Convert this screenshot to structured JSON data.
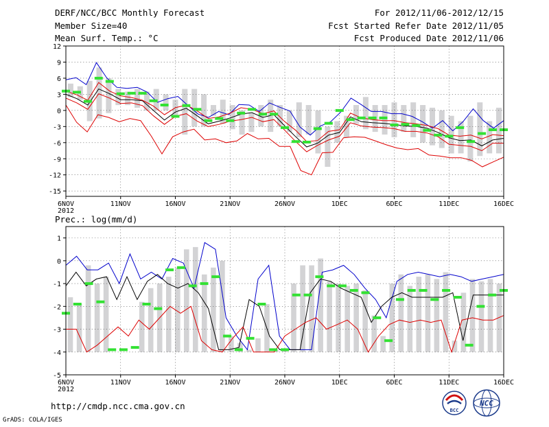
{
  "header": {
    "title": "DERF/NCC/BCC Monthly Forecast",
    "member_size": "Member Size=40",
    "variable": "Mean Surf. Temp.: °C",
    "period": "For 2012/11/06-2012/12/15",
    "refer_date": "Fcst Started Refer Date 2012/11/05",
    "produced_date": "Fcst Produced Date 2012/11/06"
  },
  "footer": {
    "url": "http://cmdp.ncc.cma.gov.cn",
    "credit": "GrADS: COLA/IGES",
    "logo_bcc": "BCC",
    "logo_ncc": "NCC"
  },
  "colors": {
    "bar": "#d3d3d5",
    "obs": "#33e133",
    "max": "#0000cc",
    "min": "#dd0000",
    "mean": "#000000",
    "extra": "#dd0000"
  },
  "chart_data": [
    {
      "type": "line",
      "title": "Mean Surf. Temp.: °C",
      "x_labels": [
        "6NOV\n2012",
        "11NOV",
        "16NOV",
        "21NOV",
        "26NOV",
        "1DEC",
        "6DEC",
        "11DEC",
        "16DEC"
      ],
      "x_tick_days": [
        0,
        5,
        10,
        15,
        20,
        25,
        30,
        35,
        40
      ],
      "xlim": [
        0,
        40
      ],
      "ylim": [
        -16,
        12
      ],
      "yticks": [
        12,
        9,
        6,
        3,
        0,
        -3,
        -6,
        -9,
        -12,
        -15
      ],
      "bar_low": [
        2.5,
        2,
        -2,
        -1.5,
        -0.5,
        1,
        1,
        0.5,
        0,
        0,
        0,
        -1,
        -4.5,
        -3,
        -3,
        -1,
        -2.5,
        -3.5,
        -4.5,
        -4,
        -3,
        -4,
        -3,
        -4,
        -5,
        -4.5,
        -8,
        -10.5,
        -6,
        -5,
        -2.5,
        -3.5,
        -4,
        -4.5,
        -5,
        -4,
        -5,
        -6,
        -6.5,
        -7,
        -8,
        -8,
        -9.5,
        -8.5,
        -8,
        -8
      ],
      "bar_high": [
        5,
        4.5,
        5.5,
        8,
        6,
        4,
        3.5,
        4,
        3.5,
        4,
        3,
        2,
        4,
        4,
        3,
        1,
        2,
        1,
        0,
        -0.5,
        1,
        2,
        1,
        0,
        1.5,
        1,
        0,
        -3,
        -2,
        -1,
        1,
        2.5,
        1,
        1,
        1.5,
        1,
        1.5,
        1,
        0.5,
        0,
        -1,
        -2,
        -1,
        1.5,
        -2,
        0.5
      ],
      "series": [
        {
          "name": "max",
          "values": [
            5.7,
            6.1,
            4.8,
            8.9,
            6.1,
            4.3,
            4.1,
            4.3,
            3.4,
            1.5,
            2.2,
            2.6,
            0.9,
            -0.7,
            -1.3,
            -0.2,
            -0.8,
            1.1,
            1.0,
            -0.2,
            1.4,
            0.6,
            -0.1,
            -3.1,
            -4.6,
            -2.9,
            -2.1,
            -0.3,
            2.3,
            1.1,
            -0.2,
            -0.2,
            -0.6,
            -0.6,
            -1.1,
            -2.1,
            -3.3,
            -1.9,
            -3.8,
            -2.1,
            0.3,
            -1.9,
            -3.3,
            -1.9
          ]
        },
        {
          "name": "min",
          "values": [
            1.0,
            -2.2,
            -4.0,
            -0.8,
            -1.3,
            -2.1,
            -1.5,
            -1.9,
            -4.8,
            -8.1,
            -4.9,
            -4.0,
            -3.5,
            -5.5,
            -5.3,
            -6.0,
            -5.7,
            -4.3,
            -5.3,
            -5.2,
            -6.7,
            -6.7,
            -11.2,
            -12.0,
            -7.9,
            -7.8,
            -5.1,
            -4.9,
            -5.0,
            -5.7,
            -6.4,
            -7.0,
            -7.3,
            -7.1,
            -8.3,
            -8.5,
            -8.8,
            -8.8,
            -9.3,
            -10.5,
            -9.6,
            -8.7
          ]
        },
        {
          "name": "mean",
          "values": [
            3.0,
            2.2,
            1.0,
            4.0,
            3.1,
            2.0,
            2.0,
            1.8,
            0.0,
            -1.8,
            -0.3,
            0.4,
            -1.0,
            -2.5,
            -2.0,
            -1.4,
            -0.7,
            -0.4,
            -1.3,
            -0.8,
            -2.9,
            -4.9,
            -6.8,
            -6.1,
            -4.6,
            -4.1,
            -1.2,
            -2.1,
            -2.3,
            -2.4,
            -2.6,
            -2.9,
            -3.0,
            -3.3,
            -4.1,
            -5.1,
            -5.6,
            -5.5,
            -6.6,
            -5.5,
            -5.2
          ]
        },
        {
          "name": "upper",
          "values": [
            3.6,
            2.9,
            1.9,
            5.2,
            3.6,
            2.7,
            2.4,
            1.9,
            0.8,
            -0.8,
            0.5,
            1.0,
            -0.1,
            -1.5,
            -1.2,
            -0.5,
            0.5,
            0.2,
            -0.6,
            -0.1,
            -2.1,
            -3.7,
            -5.8,
            -5.6,
            -3.9,
            -3.6,
            -0.5,
            -1.4,
            -1.7,
            -1.9,
            -1.9,
            -2.3,
            -2.5,
            -2.8,
            -3.4,
            -4.6,
            -4.8,
            -4.6,
            -5.3,
            -4.5,
            -4.7
          ]
        },
        {
          "name": "lower",
          "values": [
            2.3,
            1.4,
            0.2,
            3.1,
            2.3,
            1.3,
            1.4,
            0.9,
            -1.0,
            -2.6,
            -1.1,
            -0.6,
            -2.0,
            -3.0,
            -2.6,
            -2.0,
            -1.7,
            -1.3,
            -2.1,
            -1.7,
            -3.7,
            -5.8,
            -7.7,
            -6.5,
            -5.5,
            -4.8,
            -2.3,
            -2.9,
            -3.1,
            -3.2,
            -3.4,
            -3.9,
            -3.9,
            -4.2,
            -4.9,
            -6.3,
            -6.5,
            -6.7,
            -7.5,
            -6.1,
            -6.1
          ]
        },
        {
          "name": "observed",
          "values": [
            3.6,
            3.4,
            1.7,
            6.0,
            5.4,
            3.1,
            3.2,
            3.2,
            1.8,
            1.0,
            -1.1,
            0.9,
            0.2,
            -1.9,
            -1.5,
            -1.9,
            -0.5,
            0.2,
            -0.7,
            -0.7,
            -3.2,
            -5.8,
            -5.9,
            -3.4,
            -2.4,
            0.0,
            -1.7,
            -1.4,
            -1.4,
            -1.4,
            -2.7,
            -2.6,
            -2.8,
            -3.7,
            -4.6,
            -4.8,
            -3.2,
            -5.8,
            -4.3,
            -3.6,
            -3.6
          ]
        }
      ]
    },
    {
      "type": "line",
      "title": "Prec.: log(mm/d)",
      "x_labels": [
        "6NOV\n2012",
        "11NOV",
        "16NOV",
        "21NOV",
        "26NOV",
        "1DEC",
        "6DEC",
        "11DEC",
        "16DEC"
      ],
      "x_tick_days": [
        0,
        5,
        10,
        15,
        20,
        25,
        30,
        35,
        40
      ],
      "xlim": [
        0,
        40
      ],
      "ylim": [
        -5,
        1.5
      ],
      "yticks": [
        1,
        0,
        -1,
        -2,
        -3,
        -4,
        -5
      ],
      "baseline": -4,
      "bar_high": [
        -1.6,
        -1.9,
        -0.2,
        -1.0,
        -0.7,
        null,
        null,
        null,
        -1.8,
        -1.2,
        -1.0,
        -0.7,
        -0.3,
        0.5,
        0.6,
        -0.6,
        -0.3,
        0.0,
        -3.3,
        -3.6,
        -3.9,
        -3.4,
        -1.9,
        -3.9,
        -3.9,
        -1.0,
        -0.2,
        -0.2,
        0.1,
        -0.9,
        -1.0,
        -1.1,
        -1.0,
        -1.3,
        -2.4,
        -3.3,
        -1.0,
        -0.6,
        -1.1,
        -0.7,
        -0.6,
        -0.8,
        -0.5,
        -3.5,
        -1.4,
        -0.8,
        -0.9,
        -0.8,
        -1.0
      ],
      "series": [
        {
          "name": "max",
          "values": [
            -0.2,
            0.2,
            -0.4,
            -0.4,
            -0.1,
            -1.0,
            0.3,
            -0.8,
            -0.5,
            -0.8,
            0.1,
            -0.1,
            -1.2,
            0.8,
            0.5,
            -2.5,
            -3.3,
            -3.9,
            -0.8,
            -0.2,
            -3.3,
            -3.9,
            -3.9,
            -3.9,
            -0.5,
            -0.4,
            -0.2,
            -0.6,
            -1.2,
            -1.7,
            -2.5,
            -0.9,
            -0.6,
            -0.5,
            -0.6,
            -0.7,
            -0.6,
            -0.7,
            -0.9,
            -0.8,
            -0.7,
            -0.6
          ]
        },
        {
          "name": "mean",
          "values": [
            -1.1,
            -0.5,
            -1.1,
            -0.8,
            -0.7,
            -1.7,
            -0.7,
            -1.7,
            -0.9,
            -0.6,
            -1.0,
            -1.2,
            -1.0,
            -1.4,
            -2.1,
            -3.9,
            -3.9,
            -3.8,
            -1.7,
            -2.0,
            -3.3,
            -3.9,
            -3.9,
            -3.9,
            -1.4,
            -0.8,
            -0.9,
            -1.2,
            -1.4,
            -1.6,
            -2.7,
            -2.0,
            -1.6,
            -1.4,
            -1.6,
            -1.6,
            -1.6,
            -1.6,
            -1.4,
            -3.5,
            -1.5,
            -1.5,
            -1.5,
            -1.5
          ]
        },
        {
          "name": "min",
          "values": [
            -3.0,
            -3.0,
            -4.0,
            -3.7,
            -3.3,
            -2.9,
            -3.3,
            -2.6,
            -3.0,
            -2.5,
            -2.0,
            -2.3,
            -2.0,
            -3.5,
            -3.9,
            -4.0,
            -3.4,
            -2.9,
            -4.0,
            -4.0,
            -4.0,
            -3.3,
            -3.0,
            -2.7,
            -2.5,
            -3.0,
            -2.8,
            -2.6,
            -3.0,
            -4.0,
            -3.3,
            -2.8,
            -2.6,
            -2.7,
            -2.6,
            -2.7,
            -2.6,
            -4.0,
            -2.6,
            -2.5,
            -2.6,
            -2.6,
            -2.4
          ]
        },
        {
          "name": "observed",
          "values": [
            -2.3,
            -1.9,
            -1.0,
            -1.8,
            -3.9,
            -3.9,
            -3.8,
            -1.9,
            -2.1,
            -0.4,
            -0.3,
            -1.1,
            -1.0,
            -0.7,
            -3.3,
            -3.9,
            -3.4,
            -1.9,
            -3.9,
            -3.9,
            -1.5,
            -1.5,
            -0.7,
            -1.1,
            -1.1,
            -1.3,
            -1.4,
            -2.5,
            -3.5,
            -1.7,
            -1.3,
            -1.3,
            -1.7,
            -1.3,
            -1.6,
            -3.7,
            -2.0,
            -1.5,
            -1.3
          ]
        }
      ]
    }
  ]
}
